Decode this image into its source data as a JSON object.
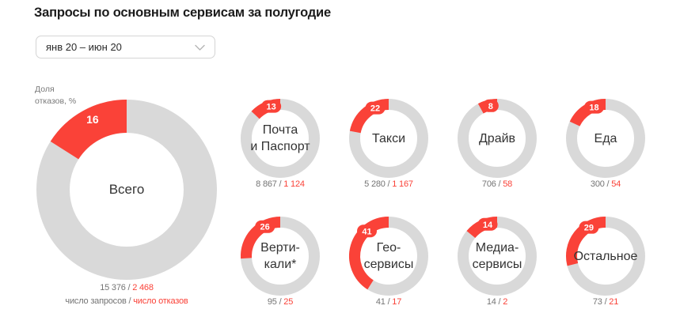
{
  "title": "Запросы по основным сервисам за полугодие",
  "period_selector": {
    "value": "янв 20 – июн 20"
  },
  "colors": {
    "accent_red": "#fa4238",
    "ring_gray": "#d9d9d9",
    "value_gray": "#747474",
    "note_gray": "#7a7a7a"
  },
  "chart_data": {
    "type": "donut",
    "unit_label": "Доля отказов, %",
    "value_legend": {
      "requests": "число запросов",
      "separator": "/",
      "failures": "число отказов"
    },
    "main": {
      "label": "Всего",
      "failure_share_pct": 16,
      "requests": 15376,
      "failures": 2468,
      "requests_display": "15 376",
      "failures_display": "2 468"
    },
    "services": [
      {
        "label": "Почта и Паспорт",
        "label_lines": [
          "Почта",
          "и Паспорт"
        ],
        "failure_share_pct": 13,
        "requests": 8867,
        "failures": 1124,
        "requests_display": "8 867",
        "failures_display": "1 124"
      },
      {
        "label": "Такси",
        "label_lines": [
          "Такси"
        ],
        "failure_share_pct": 22,
        "requests": 5280,
        "failures": 1167,
        "requests_display": "5 280",
        "failures_display": "1 167"
      },
      {
        "label": "Драйв",
        "label_lines": [
          "Драйв"
        ],
        "failure_share_pct": 8,
        "requests": 706,
        "failures": 58,
        "requests_display": "706",
        "failures_display": "58"
      },
      {
        "label": "Еда",
        "label_lines": [
          "Еда"
        ],
        "failure_share_pct": 18,
        "requests": 300,
        "failures": 54,
        "requests_display": "300",
        "failures_display": "54"
      },
      {
        "label": "Вертикали*",
        "label_lines": [
          "Верти-",
          "кали*"
        ],
        "failure_share_pct": 26,
        "requests": 95,
        "failures": 25,
        "requests_display": "95",
        "failures_display": "25"
      },
      {
        "label": "Гео-сервисы",
        "label_lines": [
          "Гео-",
          "сервисы"
        ],
        "failure_share_pct": 41,
        "requests": 41,
        "failures": 17,
        "requests_display": "41",
        "failures_display": "17"
      },
      {
        "label": "Медиа-сервисы",
        "label_lines": [
          "Медиа-",
          "сервисы"
        ],
        "failure_share_pct": 14,
        "requests": 14,
        "failures": 2,
        "requests_display": "14",
        "failures_display": "2"
      },
      {
        "label": "Остальное",
        "label_lines": [
          "Остальное"
        ],
        "failure_share_pct": 29,
        "requests": 73,
        "failures": 21,
        "requests_display": "73",
        "failures_display": "21"
      }
    ]
  }
}
